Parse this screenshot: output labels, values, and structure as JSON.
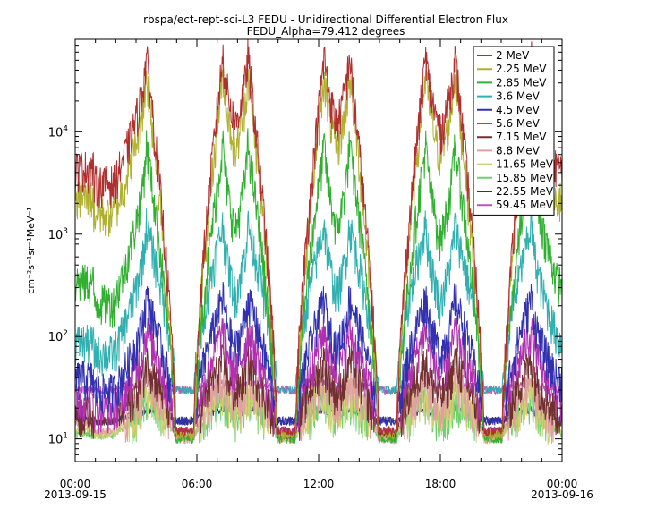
{
  "chart_data": {
    "type": "line",
    "title": "rbspa/ect-rept-sci-L3  FEDU - Unidirectional Differential Electron Flux",
    "subtitle": "FEDU_Alpha=79.412 degrees",
    "ylabel": "cm⁻²s⁻¹sr⁻¹MeV⁻¹",
    "y_scale": "log",
    "ylim": [
      6,
      80000
    ],
    "y_ticks": [
      {
        "value": 10,
        "mantissa": "10",
        "exp": "1"
      },
      {
        "value": 100,
        "mantissa": "10",
        "exp": "2"
      },
      {
        "value": 1000,
        "mantissa": "10",
        "exp": "3"
      },
      {
        "value": 10000,
        "mantissa": "10",
        "exp": "4"
      }
    ],
    "xlim_hours": [
      0,
      24
    ],
    "x_ticks": [
      {
        "hour": 0,
        "label": "00:00",
        "date": "2013-09-15"
      },
      {
        "hour": 6,
        "label": "06:00",
        "date": ""
      },
      {
        "hour": 12,
        "label": "12:00",
        "date": ""
      },
      {
        "hour": 18,
        "label": "18:00",
        "date": ""
      },
      {
        "hour": 24,
        "label": "00:00",
        "date": "2013-09-16"
      }
    ],
    "legend_position": "top-right",
    "series": [
      {
        "name": "2 MeV",
        "color": "#b03030",
        "floor": 12,
        "peak": 60000,
        "mid": 3200,
        "edge": 4500
      },
      {
        "name": "2.25 MeV",
        "color": "#b0b030",
        "floor": 11,
        "peak": 40000,
        "mid": 1600,
        "edge": 2300
      },
      {
        "name": "2.85 MeV",
        "color": "#30b030",
        "floor": 10,
        "peak": 8000,
        "mid": 220,
        "edge": 350
      },
      {
        "name": "3.6 MeV",
        "color": "#30b0b0",
        "floor": 30,
        "peak": 1300,
        "mid": 70,
        "edge": 90
      },
      {
        "name": "4.5 MeV",
        "color": "#3030b0",
        "floor": 15,
        "peak": 250,
        "mid": 30,
        "edge": 40
      },
      {
        "name": "5.6 MeV",
        "color": "#b030b0",
        "floor": 12,
        "peak": 120,
        "mid": 20,
        "edge": 25
      },
      {
        "name": "7.15 MeV",
        "color": "#703030",
        "floor": 11,
        "peak": 60,
        "mid": 15,
        "edge": 18
      },
      {
        "name": "8.8 MeV",
        "color": "#e0a0a0",
        "floor": 10,
        "peak": 40,
        "mid": 12,
        "edge": 14
      },
      {
        "name": "11.65 MeV",
        "color": "#d0d070",
        "floor": 10,
        "peak": 30,
        "mid": 11,
        "edge": 12
      },
      {
        "name": "15.85 MeV",
        "color": "#70d070",
        "floor": 10,
        "peak": 25,
        "mid": 11,
        "edge": 11
      },
      {
        "name": "22.55 MeV",
        "color": "#303070",
        "floor": 15,
        "peak": 20,
        "mid": 15,
        "edge": 15
      },
      {
        "name": "59.45 MeV",
        "color": "#c050c0",
        "floor": 30,
        "peak": 35,
        "mid": 30,
        "edge": 30
      }
    ],
    "perigee_hours": [
      5.4,
      10.4,
      15.4,
      20.6
    ],
    "apogee_hours": [
      2.0,
      8.0,
      13.0,
      18.2,
      22.8
    ]
  }
}
